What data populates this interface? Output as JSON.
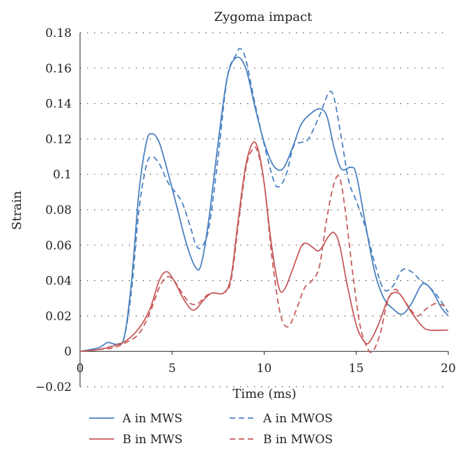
{
  "chart_data": {
    "type": "line",
    "title": "Zygoma impact",
    "xlabel": "Time (ms)",
    "ylabel": "Strain",
    "xlim": [
      0,
      20
    ],
    "ylim": [
      -0.02,
      0.18
    ],
    "xticks": [
      0,
      5,
      10,
      15,
      20
    ],
    "yticks": [
      -0.02,
      0,
      0.02,
      0.04,
      0.06,
      0.08,
      0.1,
      0.12,
      0.14,
      0.16,
      0.18
    ],
    "xtick_labels": [
      "0",
      "5",
      "10",
      "15",
      "20"
    ],
    "ytick_labels": [
      "−0.02",
      "0",
      "0.02",
      "0.04",
      "0.06",
      "0.08",
      "0.1",
      "0.12",
      "0.14",
      "0.16",
      "0.18"
    ],
    "grid": "dotted horizontal",
    "legend_position": "bottom",
    "series": [
      {
        "name": "A in MWS",
        "color": "#4a80c0",
        "dash": "solid",
        "points": [
          [
            0,
            0
          ],
          [
            1,
            0.002
          ],
          [
            1.5,
            0.005
          ],
          [
            2,
            0.004
          ],
          [
            2.4,
            0.008
          ],
          [
            2.8,
            0.04
          ],
          [
            3.2,
            0.09
          ],
          [
            3.6,
            0.118
          ],
          [
            3.9,
            0.123
          ],
          [
            4.3,
            0.118
          ],
          [
            4.8,
            0.1
          ],
          [
            5.3,
            0.08
          ],
          [
            5.8,
            0.06
          ],
          [
            6.3,
            0.047
          ],
          [
            6.6,
            0.05
          ],
          [
            7,
            0.075
          ],
          [
            7.5,
            0.118
          ],
          [
            8,
            0.155
          ],
          [
            8.5,
            0.166
          ],
          [
            9,
            0.16
          ],
          [
            9.5,
            0.138
          ],
          [
            10,
            0.118
          ],
          [
            10.5,
            0.105
          ],
          [
            11,
            0.103
          ],
          [
            11.5,
            0.114
          ],
          [
            12,
            0.128
          ],
          [
            12.5,
            0.134
          ],
          [
            13,
            0.137
          ],
          [
            13.4,
            0.133
          ],
          [
            13.8,
            0.115
          ],
          [
            14.2,
            0.103
          ],
          [
            14.7,
            0.104
          ],
          [
            15,
            0.1
          ],
          [
            15.5,
            0.072
          ],
          [
            16,
            0.045
          ],
          [
            16.5,
            0.03
          ],
          [
            17,
            0.024
          ],
          [
            17.5,
            0.021
          ],
          [
            18,
            0.027
          ],
          [
            18.5,
            0.037
          ],
          [
            18.8,
            0.038
          ],
          [
            19.2,
            0.033
          ],
          [
            19.6,
            0.025
          ],
          [
            20,
            0.02
          ]
        ]
      },
      {
        "name": "A in MWOS",
        "color": "#4a80c0",
        "dash": "dashed",
        "points": [
          [
            0,
            0
          ],
          [
            1,
            0.001
          ],
          [
            2,
            0.004
          ],
          [
            2.4,
            0.008
          ],
          [
            2.8,
            0.035
          ],
          [
            3.2,
            0.08
          ],
          [
            3.6,
            0.105
          ],
          [
            3.9,
            0.11
          ],
          [
            4.3,
            0.106
          ],
          [
            4.8,
            0.095
          ],
          [
            5.5,
            0.085
          ],
          [
            6,
            0.07
          ],
          [
            6.3,
            0.06
          ],
          [
            6.6,
            0.059
          ],
          [
            7,
            0.07
          ],
          [
            7.5,
            0.11
          ],
          [
            8,
            0.155
          ],
          [
            8.5,
            0.168
          ],
          [
            8.7,
            0.171
          ],
          [
            9,
            0.165
          ],
          [
            9.5,
            0.14
          ],
          [
            10,
            0.117
          ],
          [
            10.5,
            0.097
          ],
          [
            10.8,
            0.093
          ],
          [
            11.2,
            0.1
          ],
          [
            11.6,
            0.116
          ],
          [
            12,
            0.118
          ],
          [
            12.4,
            0.12
          ],
          [
            13,
            0.133
          ],
          [
            13.5,
            0.146
          ],
          [
            13.8,
            0.143
          ],
          [
            14.2,
            0.12
          ],
          [
            14.6,
            0.096
          ],
          [
            15,
            0.085
          ],
          [
            15.5,
            0.07
          ],
          [
            16,
            0.05
          ],
          [
            16.5,
            0.035
          ],
          [
            17,
            0.037
          ],
          [
            17.5,
            0.046
          ],
          [
            18,
            0.045
          ],
          [
            18.5,
            0.04
          ],
          [
            19,
            0.036
          ],
          [
            19.5,
            0.03
          ],
          [
            20,
            0.022
          ]
        ]
      },
      {
        "name": "B in MWS",
        "color": "#c85a5a",
        "dash": "solid",
        "points": [
          [
            0,
            0
          ],
          [
            1,
            0.001
          ],
          [
            1.8,
            0.003
          ],
          [
            2.5,
            0.006
          ],
          [
            3.2,
            0.013
          ],
          [
            3.8,
            0.024
          ],
          [
            4.3,
            0.04
          ],
          [
            4.7,
            0.045
          ],
          [
            5.1,
            0.04
          ],
          [
            5.6,
            0.03
          ],
          [
            6,
            0.024
          ],
          [
            6.3,
            0.024
          ],
          [
            6.8,
            0.03
          ],
          [
            7.2,
            0.033
          ],
          [
            7.8,
            0.033
          ],
          [
            8.2,
            0.042
          ],
          [
            8.6,
            0.075
          ],
          [
            9,
            0.105
          ],
          [
            9.4,
            0.118
          ],
          [
            9.7,
            0.113
          ],
          [
            10,
            0.095
          ],
          [
            10.4,
            0.06
          ],
          [
            10.8,
            0.036
          ],
          [
            11.1,
            0.035
          ],
          [
            11.5,
            0.045
          ],
          [
            12,
            0.059
          ],
          [
            12.3,
            0.061
          ],
          [
            12.6,
            0.059
          ],
          [
            13,
            0.057
          ],
          [
            13.5,
            0.065
          ],
          [
            13.8,
            0.067
          ],
          [
            14.1,
            0.06
          ],
          [
            14.5,
            0.038
          ],
          [
            15,
            0.015
          ],
          [
            15.4,
            0.006
          ],
          [
            15.7,
            0.005
          ],
          [
            16.2,
            0.015
          ],
          [
            16.7,
            0.029
          ],
          [
            17,
            0.033
          ],
          [
            17.4,
            0.032
          ],
          [
            18,
            0.022
          ],
          [
            18.6,
            0.014
          ],
          [
            19,
            0.012
          ],
          [
            20,
            0.012
          ]
        ]
      },
      {
        "name": "B in MWOS",
        "color": "#c85a5a",
        "dash": "dashed",
        "points": [
          [
            0,
            0
          ],
          [
            1,
            0.001
          ],
          [
            1.8,
            0.002
          ],
          [
            2.5,
            0.005
          ],
          [
            3.2,
            0.01
          ],
          [
            3.8,
            0.022
          ],
          [
            4.3,
            0.036
          ],
          [
            4.7,
            0.042
          ],
          [
            5.1,
            0.04
          ],
          [
            5.6,
            0.032
          ],
          [
            6,
            0.027
          ],
          [
            6.4,
            0.027
          ],
          [
            6.8,
            0.031
          ],
          [
            7.2,
            0.033
          ],
          [
            7.8,
            0.033
          ],
          [
            8.2,
            0.04
          ],
          [
            8.6,
            0.072
          ],
          [
            9,
            0.103
          ],
          [
            9.3,
            0.113
          ],
          [
            9.6,
            0.114
          ],
          [
            10,
            0.095
          ],
          [
            10.4,
            0.055
          ],
          [
            10.8,
            0.025
          ],
          [
            11.1,
            0.015
          ],
          [
            11.4,
            0.015
          ],
          [
            11.8,
            0.025
          ],
          [
            12.2,
            0.036
          ],
          [
            12.6,
            0.04
          ],
          [
            13,
            0.048
          ],
          [
            13.4,
            0.075
          ],
          [
            13.8,
            0.095
          ],
          [
            14.1,
            0.098
          ],
          [
            14.4,
            0.08
          ],
          [
            14.8,
            0.045
          ],
          [
            15.2,
            0.015
          ],
          [
            15.6,
            0.002
          ],
          [
            15.9,
            0
          ],
          [
            16.3,
            0.01
          ],
          [
            16.7,
            0.028
          ],
          [
            17.1,
            0.035
          ],
          [
            17.4,
            0.032
          ],
          [
            17.8,
            0.026
          ],
          [
            18.3,
            0.02
          ],
          [
            18.8,
            0.024
          ],
          [
            19.3,
            0.027
          ],
          [
            19.7,
            0.026
          ],
          [
            20,
            0.025
          ]
        ]
      }
    ]
  }
}
